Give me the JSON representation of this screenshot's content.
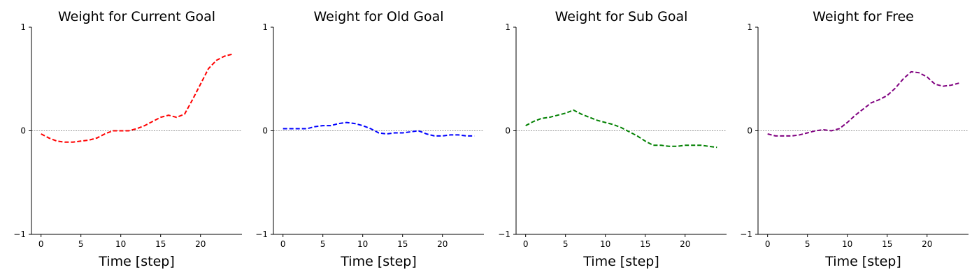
{
  "chart_data": [
    {
      "type": "line",
      "title": "Weight for Current Goal",
      "xlabel": "Time [step]",
      "ylabel": "",
      "xlim": [
        -1.2,
        25.2
      ],
      "ylim": [
        -1,
        1
      ],
      "xticks": [
        0,
        5,
        10,
        15,
        20
      ],
      "yticks": [
        -1,
        0,
        1
      ],
      "grid": false,
      "zero_line": true,
      "color": "#ff0000",
      "series": [
        {
          "x": [
            0,
            1,
            2,
            3,
            4,
            5,
            6,
            7,
            8,
            9,
            10,
            11,
            12,
            13,
            14,
            15,
            16,
            17,
            18,
            19,
            20,
            21,
            22,
            23,
            24
          ],
          "values": [
            -0.03,
            -0.07,
            -0.1,
            -0.11,
            -0.11,
            -0.1,
            -0.09,
            -0.07,
            -0.03,
            0.0,
            0.0,
            0.0,
            0.02,
            0.05,
            0.09,
            0.13,
            0.15,
            0.13,
            0.16,
            0.3,
            0.45,
            0.6,
            0.68,
            0.72,
            0.74
          ]
        }
      ]
    },
    {
      "type": "line",
      "title": "Weight for Old Goal",
      "xlabel": "Time [step]",
      "ylabel": "",
      "xlim": [
        -1.2,
        25.2
      ],
      "ylim": [
        -1,
        1
      ],
      "xticks": [
        0,
        5,
        10,
        15,
        20
      ],
      "yticks": [
        -1,
        0,
        1
      ],
      "grid": false,
      "zero_line": true,
      "color": "#0000ff",
      "series": [
        {
          "x": [
            0,
            1,
            2,
            3,
            4,
            5,
            6,
            7,
            8,
            9,
            10,
            11,
            12,
            13,
            14,
            15,
            16,
            17,
            18,
            19,
            20,
            21,
            22,
            23,
            24
          ],
          "values": [
            0.02,
            0.02,
            0.02,
            0.02,
            0.04,
            0.05,
            0.05,
            0.07,
            0.08,
            0.07,
            0.05,
            0.02,
            -0.02,
            -0.03,
            -0.02,
            -0.02,
            -0.01,
            0.0,
            -0.03,
            -0.05,
            -0.05,
            -0.04,
            -0.04,
            -0.05,
            -0.05
          ]
        }
      ]
    },
    {
      "type": "line",
      "title": "Weight for Sub Goal",
      "xlabel": "Time [step]",
      "ylabel": "",
      "xlim": [
        -1.2,
        25.2
      ],
      "ylim": [
        -1,
        1
      ],
      "xticks": [
        0,
        5,
        10,
        15,
        20
      ],
      "yticks": [
        -1,
        0,
        1
      ],
      "grid": false,
      "zero_line": true,
      "color": "#008000",
      "series": [
        {
          "x": [
            0,
            1,
            2,
            3,
            4,
            5,
            6,
            7,
            8,
            9,
            10,
            11,
            12,
            13,
            14,
            15,
            16,
            17,
            18,
            19,
            20,
            21,
            22,
            23,
            24
          ],
          "values": [
            0.05,
            0.09,
            0.12,
            0.13,
            0.15,
            0.17,
            0.2,
            0.16,
            0.13,
            0.1,
            0.08,
            0.06,
            0.03,
            -0.01,
            -0.05,
            -0.1,
            -0.14,
            -0.14,
            -0.15,
            -0.15,
            -0.14,
            -0.14,
            -0.14,
            -0.15,
            -0.16
          ]
        }
      ]
    },
    {
      "type": "line",
      "title": "Weight for Free",
      "xlabel": "Time [step]",
      "ylabel": "",
      "xlim": [
        -1.2,
        25.2
      ],
      "ylim": [
        -1,
        1
      ],
      "xticks": [
        0,
        5,
        10,
        15,
        20
      ],
      "yticks": [
        -1,
        0,
        1
      ],
      "grid": false,
      "zero_line": true,
      "color": "#800080",
      "series": [
        {
          "x": [
            0,
            1,
            2,
            3,
            4,
            5,
            6,
            7,
            8,
            9,
            10,
            11,
            12,
            13,
            14,
            15,
            16,
            17,
            18,
            19,
            20,
            21,
            22,
            23,
            24
          ],
          "values": [
            -0.03,
            -0.05,
            -0.05,
            -0.05,
            -0.04,
            -0.02,
            0.0,
            0.01,
            0.0,
            0.02,
            0.08,
            0.15,
            0.21,
            0.27,
            0.3,
            0.34,
            0.41,
            0.5,
            0.57,
            0.56,
            0.52,
            0.45,
            0.43,
            0.44,
            0.46
          ]
        }
      ]
    }
  ]
}
